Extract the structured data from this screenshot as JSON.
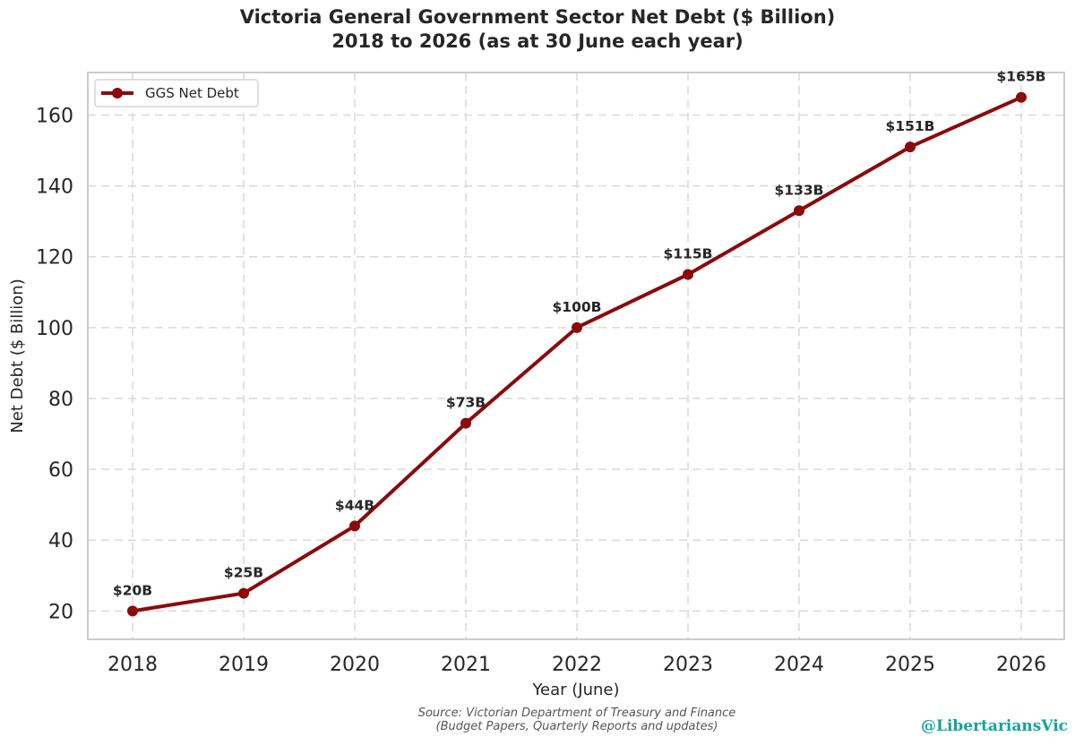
{
  "header": {
    "title_line1": "Victoria General Government Sector Net Debt ($ Billion)",
    "title_line2": "2018 to 2026 (as at 30 June each year)"
  },
  "footer": {
    "source_line1": "Source: Victorian Department of Treasury and Finance",
    "source_line2": "(Budget Papers, Quarterly Reports and updates)",
    "handle": "@LibertariansVic"
  },
  "colors": {
    "line": "#8b0a0a",
    "grid": "#d9d9d9",
    "frame": "#cccccc",
    "handle": "#12a39a"
  },
  "chart_data": {
    "type": "line",
    "title": "Victoria General Government Sector Net Debt ($ Billion) 2018 to 2026 (as at 30 June each year)",
    "xlabel": "Year (June)",
    "ylabel": "Net Debt ($ Billion)",
    "x": [
      "2018",
      "2019",
      "2020",
      "2021",
      "2022",
      "2023",
      "2024",
      "2025",
      "2026"
    ],
    "series": [
      {
        "name": "GGS Net Debt",
        "values": [
          20,
          25,
          44,
          73,
          100,
          115,
          133,
          151,
          165
        ],
        "labels": [
          "$20B",
          "$25B",
          "$44B",
          "$73B",
          "$100B",
          "$115B",
          "$133B",
          "$151B",
          "$165B"
        ]
      }
    ],
    "yticks": [
      20,
      40,
      60,
      80,
      100,
      120,
      140,
      160
    ],
    "ylim": [
      12,
      172
    ],
    "grid": true,
    "grid_style": "dashed",
    "legend_position": "top-left",
    "marker": "circle"
  }
}
